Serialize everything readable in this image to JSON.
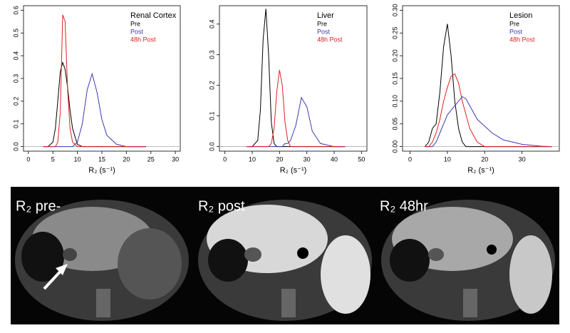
{
  "chart_data": [
    {
      "type": "line",
      "title": "Renal Cortex",
      "xlabel": "R₂ (s⁻¹)",
      "x": [
        3,
        4,
        5,
        5.5,
        6,
        6.5,
        7,
        7.5,
        8,
        8.5,
        9,
        10,
        11,
        12,
        13,
        14,
        15,
        16,
        18,
        20,
        24
      ],
      "series": [
        {
          "name": "Pre",
          "color": "#000000",
          "values": [
            0,
            0,
            0.02,
            0.08,
            0.2,
            0.33,
            0.37,
            0.34,
            0.26,
            0.16,
            0.08,
            0.01,
            0,
            0,
            0,
            0,
            0,
            0,
            0,
            0,
            0
          ]
        },
        {
          "name": "Post",
          "color": "#3b3bb0",
          "values": [
            0,
            0,
            0,
            0,
            0,
            0,
            0,
            0,
            0,
            0,
            0,
            0.02,
            0.1,
            0.25,
            0.32,
            0.24,
            0.12,
            0.05,
            0.01,
            0,
            0
          ]
        },
        {
          "name": "48h Post",
          "color": "#e02020",
          "values": [
            0,
            0,
            0,
            0,
            0.02,
            0.15,
            0.58,
            0.55,
            0.25,
            0.08,
            0.02,
            0,
            0,
            0,
            0,
            0,
            0,
            0,
            0,
            0,
            0
          ]
        }
      ],
      "xlim": [
        -1,
        31
      ],
      "xticks": [
        0,
        5,
        10,
        15,
        20,
        25,
        30
      ],
      "ylim": [
        -0.02,
        0.62
      ],
      "yticks": [
        {
          "value": 0,
          "label": "0.0"
        },
        0.1,
        0.2,
        0.3,
        0.4,
        0.5,
        0.6
      ]
    },
    {
      "type": "line",
      "title": "Liver",
      "xlabel": "R₂ (s⁻¹)",
      "x": [
        8,
        10,
        12,
        13,
        14,
        15,
        16,
        17,
        18,
        19,
        20,
        21,
        22,
        23,
        24,
        26,
        28,
        30,
        32,
        35,
        40,
        44
      ],
      "series": [
        {
          "name": "Pre",
          "color": "#000000",
          "values": [
            0,
            0,
            0.02,
            0.12,
            0.35,
            0.45,
            0.3,
            0.08,
            0.01,
            0,
            0,
            0,
            0,
            0,
            0,
            0,
            0,
            0,
            0,
            0,
            0,
            0
          ]
        },
        {
          "name": "Post",
          "color": "#3b3bb0",
          "values": [
            0,
            0,
            0,
            0,
            0,
            0,
            0,
            0,
            0,
            0,
            0,
            0,
            0.01,
            0.01,
            0.02,
            0.07,
            0.16,
            0.13,
            0.05,
            0.01,
            0,
            0
          ]
        },
        {
          "name": "48h Post",
          "color": "#e02020",
          "values": [
            0,
            0,
            0,
            0,
            0,
            0,
            0,
            0.01,
            0.06,
            0.18,
            0.25,
            0.2,
            0.08,
            0.02,
            0,
            0,
            0,
            0,
            0,
            0,
            0,
            0
          ]
        }
      ],
      "xlim": [
        -2,
        52
      ],
      "xticks": [
        0,
        10,
        20,
        30,
        40,
        50
      ],
      "ylim": [
        -0.015,
        0.46
      ],
      "yticks": [
        {
          "value": 0,
          "label": "0.0"
        },
        0.1,
        0.2,
        0.3,
        0.4
      ]
    },
    {
      "type": "line",
      "title": "Lesion",
      "xlabel": "R₂ (s⁻¹)",
      "x": [
        4,
        5,
        6,
        7,
        8,
        9,
        10,
        11,
        12,
        13,
        14,
        15,
        16,
        18,
        20,
        22,
        25,
        30,
        35,
        38
      ],
      "series": [
        {
          "name": "Pre",
          "color": "#000000",
          "values": [
            0,
            0.01,
            0.04,
            0.05,
            0.12,
            0.22,
            0.27,
            0.2,
            0.1,
            0.04,
            0.01,
            0,
            0,
            0,
            0,
            0,
            0,
            0,
            0,
            0
          ]
        },
        {
          "name": "Post",
          "color": "#3b3bb0",
          "values": [
            0,
            0,
            0,
            0.01,
            0.03,
            0.05,
            0.07,
            0.08,
            0.09,
            0.1,
            0.11,
            0.105,
            0.09,
            0.06,
            0.045,
            0.03,
            0.015,
            0.005,
            0.001,
            0
          ]
        },
        {
          "name": "48h Post",
          "color": "#e02020",
          "values": [
            0,
            0,
            0.01,
            0.03,
            0.06,
            0.1,
            0.13,
            0.155,
            0.16,
            0.14,
            0.1,
            0.07,
            0.04,
            0.01,
            0,
            0,
            0,
            0,
            0,
            0
          ]
        }
      ],
      "xlim": [
        -2,
        40
      ],
      "xticks": [
        0,
        10,
        20,
        30
      ],
      "ylim": [
        -0.01,
        0.31
      ],
      "yticks": [
        {
          "value": 0,
          "label": "0.00"
        },
        0.05,
        {
          "value": 0.1,
          "label": "0.10"
        },
        0.15,
        {
          "value": 0.2,
          "label": "0.20"
        },
        0.25,
        {
          "value": 0.3,
          "label": "0.30"
        }
      ]
    }
  ],
  "images": [
    {
      "label": "R₂ pre-"
    },
    {
      "label": "R₂ post"
    },
    {
      "label": "R₂ 48hr"
    }
  ]
}
